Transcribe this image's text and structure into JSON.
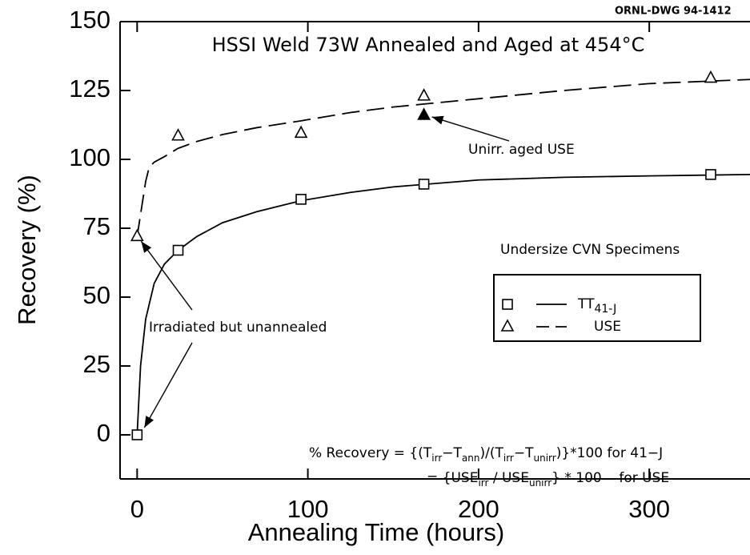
{
  "chart_data": {
    "type": "scatter",
    "title": "HSSI Weld 73W Annealed and Aged at 454°C",
    "drawing_number": "ORNL-DWG 94-1412",
    "x_label": "Annealing Time (hours)",
    "y_label": "Recovery (%)",
    "xlim": [
      -10,
      359
    ],
    "ylim": [
      -16,
      150
    ],
    "xticks": [
      0,
      100,
      200,
      300
    ],
    "yticks": [
      0,
      25,
      50,
      75,
      100,
      125,
      150
    ],
    "legend_title": "Undersize CVN Specimens",
    "series": [
      {
        "name": "TT",
        "name_subscript": "41-J",
        "marker": "square",
        "line": "solid",
        "color": "#000000",
        "x": [
          0,
          24,
          96,
          168,
          336
        ],
        "values": [
          0,
          67,
          85.5,
          91,
          94.5
        ],
        "fit_x": [
          0,
          2,
          5,
          10,
          16,
          24,
          35,
          50,
          70,
          96,
          125,
          150,
          200,
          250,
          300,
          359
        ],
        "fit_values": [
          0,
          25,
          42,
          55,
          62,
          67,
          72,
          77,
          81,
          85,
          88,
          90,
          92.5,
          93.5,
          94,
          94.5
        ]
      },
      {
        "name": "USE",
        "marker": "triangle",
        "line": "dashed",
        "color": "#000000",
        "x": [
          0,
          24,
          96,
          168,
          336
        ],
        "values": [
          72,
          108.5,
          109.5,
          123,
          129.5
        ],
        "fit_x": [
          0,
          3,
          5,
          7,
          10,
          16,
          24,
          35,
          50,
          70,
          96,
          125,
          150,
          200,
          250,
          300,
          359
        ],
        "fit_values": [
          72,
          84,
          92,
          97,
          99,
          101,
          104,
          106.5,
          109,
          111.5,
          114,
          117,
          119,
          122,
          125,
          127.5,
          129
        ]
      },
      {
        "name": "Unirr. aged USE",
        "marker": "filled-triangle",
        "legend": false,
        "color": "#000000",
        "x": [
          168
        ],
        "values": [
          116
        ]
      }
    ],
    "annotations": [
      {
        "text": "Irradiated but unannealed"
      }
    ],
    "formula": [
      [
        {
          "text": "% Recovery = {(T"
        },
        {
          "text": "irr",
          "sub": true
        },
        {
          "text": "−T"
        },
        {
          "text": "ann",
          "sub": true
        },
        {
          "text": ")/(T"
        },
        {
          "text": "irr",
          "sub": true
        },
        {
          "text": "−T"
        },
        {
          "text": "unirr",
          "sub": true
        },
        {
          "text": ")}*100 for 41−J"
        }
      ],
      [
        {
          "text": "= {USE"
        },
        {
          "text": "irr",
          "sub": true
        },
        {
          "text": " / USE"
        },
        {
          "text": "unirr",
          "sub": true
        },
        {
          "text": "} * 100    for USE"
        }
      ]
    ]
  }
}
